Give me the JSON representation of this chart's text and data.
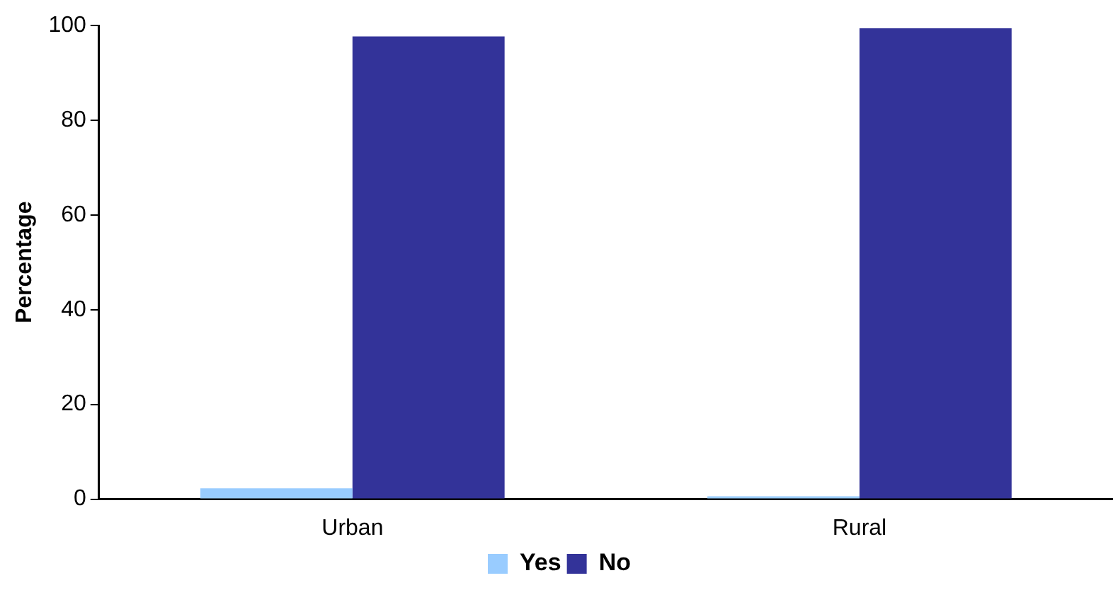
{
  "chart_data": {
    "type": "bar",
    "ylabel": "Percentage",
    "categories": [
      "Urban",
      "Rural"
    ],
    "series": [
      {
        "name": "Yes",
        "color": "#99ccff",
        "values": [
          2.3,
          0.6
        ]
      },
      {
        "name": "No",
        "color": "#333399",
        "values": [
          97.7,
          99.4
        ]
      }
    ],
    "ylim": [
      0,
      100
    ],
    "yticks": [
      0,
      20,
      40,
      60,
      80,
      100
    ],
    "grid": false,
    "legend": "bottom"
  }
}
